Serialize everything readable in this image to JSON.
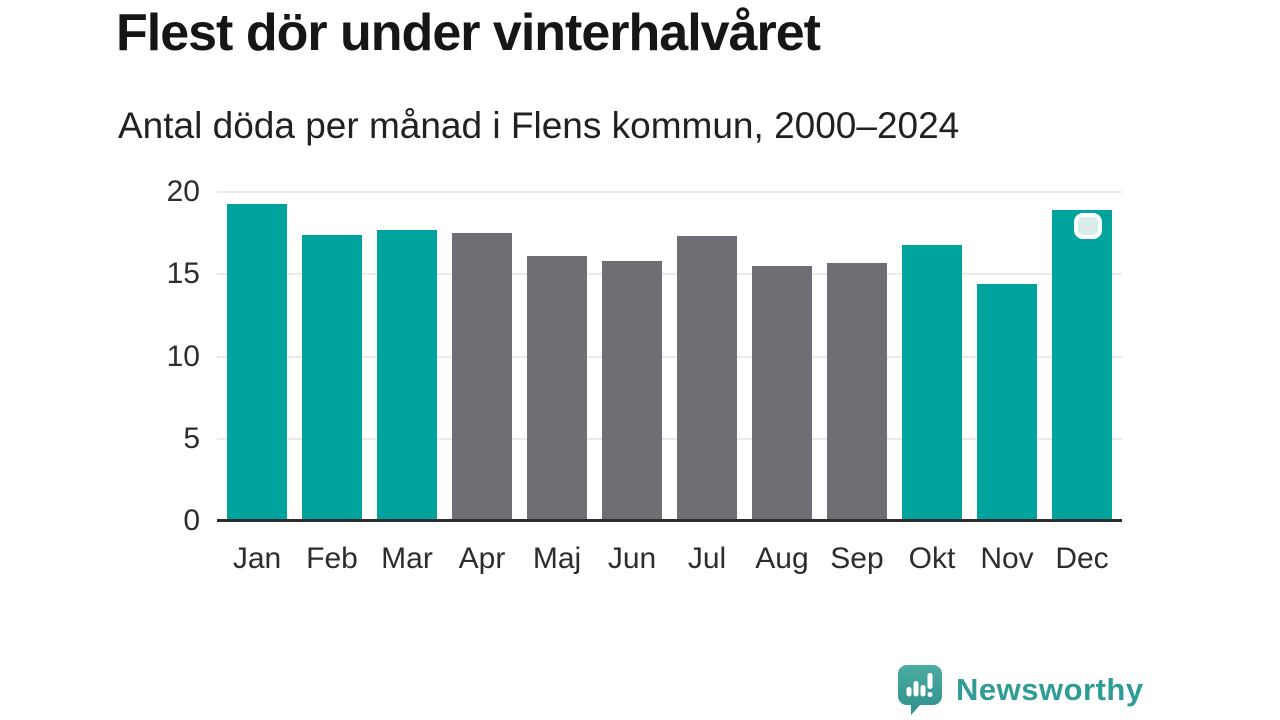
{
  "header": {
    "title": "Flest dör under vinterhalvåret",
    "subtitle": "Antal döda per månad i Flens kommun, 2000–2024"
  },
  "chart_data": {
    "type": "bar",
    "title": "Flest dör under vinterhalvåret",
    "subtitle": "Antal döda per månad i Flens kommun, 2000–2024",
    "categories": [
      "Jan",
      "Feb",
      "Mar",
      "Apr",
      "Maj",
      "Jun",
      "Jul",
      "Aug",
      "Sep",
      "Okt",
      "Nov",
      "Dec"
    ],
    "values": [
      19.3,
      17.4,
      17.7,
      17.5,
      16.1,
      15.8,
      17.3,
      15.5,
      15.7,
      16.8,
      14.4,
      18.9
    ],
    "bar_colors": [
      "teal",
      "teal",
      "teal",
      "gray",
      "gray",
      "gray",
      "gray",
      "gray",
      "gray",
      "teal",
      "teal",
      "teal"
    ],
    "palette": {
      "teal": "#00a49c",
      "gray": "#706d75",
      "marker_fill": "#d9ece9",
      "marker_border": "#ffffff",
      "gridline": "#eaeaea",
      "axis_line": "#2d2d2d",
      "tick_text": "#2d2d2d"
    },
    "xlabel": "",
    "ylabel": "",
    "ylim": [
      0,
      20
    ],
    "yticks": [
      0,
      5,
      10,
      15,
      20
    ],
    "grid": true,
    "legend": "none",
    "highlight_marker": {
      "category": "Dec",
      "icon": "rounded-square-badge"
    }
  },
  "footer": {
    "brand": "Newsworthy",
    "logo_icon": "newsworthy-speech-bubble-bars-icon",
    "brand_color": "#2f9d96"
  }
}
